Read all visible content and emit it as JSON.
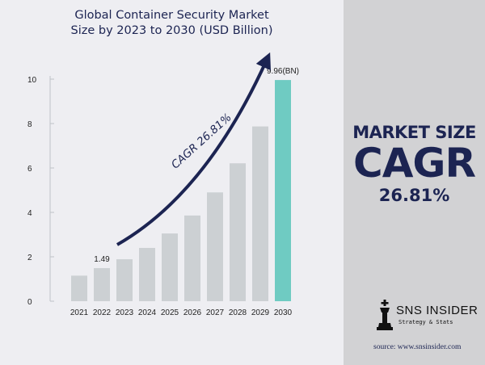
{
  "colors": {
    "navy": "#1c2452",
    "bar": "#ccd0d3",
    "highlight_bar": "#6fcbc2",
    "left_background": "#eeeef2",
    "right_background": "#d2d2d4"
  },
  "chart_data": {
    "type": "bar",
    "title_line1": "Global Container Security Market",
    "title_line2": "Size by 2023 to 2030 (USD Billion)",
    "categories": [
      "2021",
      "2022",
      "2023",
      "2024",
      "2025",
      "2026",
      "2027",
      "2028",
      "2029",
      "2030"
    ],
    "values": [
      1.15,
      1.49,
      1.89,
      2.4,
      3.05,
      3.86,
      4.9,
      6.21,
      7.87,
      9.96
    ],
    "highlight_category": "2030",
    "ylim": [
      0,
      10
    ],
    "yticks": [
      "0",
      "2",
      "4",
      "6",
      "8",
      "10"
    ],
    "grid": false,
    "data_labels": {
      "2022": "1.49",
      "2030": "9.96(BN)"
    },
    "arrow_label": "CAGR 26.81%"
  },
  "kpi": {
    "label": "MARKET SIZE",
    "big": "CAGR",
    "value": "26.81%"
  },
  "brand": {
    "name": "SNS INSIDER",
    "tagline": "Strategy & Stats",
    "logo_icon": "chess-king-icon"
  },
  "source": "source: www.snsinsider.com"
}
